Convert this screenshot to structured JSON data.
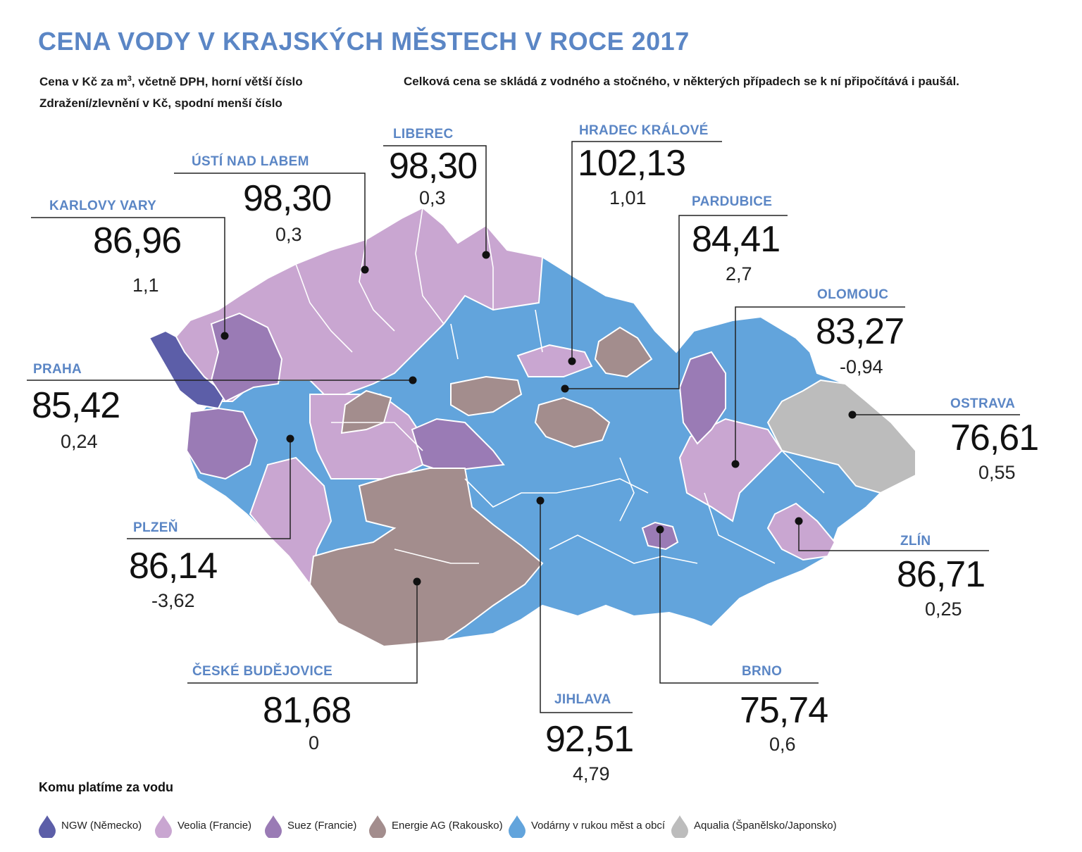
{
  "title": "CENA VODY V KRAJSKÝCH MĚSTECH V ROCE 2017",
  "subtitle": {
    "line1_prefix": "Cena v Kč za m",
    "line1_sup": "3",
    "line1_suffix": ", včetně DPH, horní větší číslo",
    "line2": "Zdražení/zlevnění v Kč, spodní menší číslo",
    "note": "Celková cena se skládá z vodného a stočného, v některých případech se k ní připočítává i paušál."
  },
  "colors": {
    "ngw": "#5c5ea8",
    "veolia": "#c9a6d1",
    "suez": "#9a7bb5",
    "energie": "#a38d8d",
    "vodarny": "#62a4dc",
    "aqualia": "#bcbcbc"
  },
  "cities": [
    {
      "id": "praha",
      "name": "PRAHA",
      "price": "85,42",
      "change": "0,24"
    },
    {
      "id": "karlovy-vary",
      "name": "KARLOVY VARY",
      "price": "86,96",
      "change": "1,1"
    },
    {
      "id": "usti",
      "name": "ÚSTÍ NAD LABEM",
      "price": "98,30",
      "change": "0,3"
    },
    {
      "id": "liberec",
      "name": "LIBEREC",
      "price": "98,30",
      "change": "0,3"
    },
    {
      "id": "hradec",
      "name": "HRADEC KRÁLOVÉ",
      "price": "102,13",
      "change": "1,01"
    },
    {
      "id": "pardubice",
      "name": "PARDUBICE",
      "price": "84,41",
      "change": "2,7"
    },
    {
      "id": "olomouc",
      "name": "OLOMOUC",
      "price": "83,27",
      "change": "-0,94"
    },
    {
      "id": "ostrava",
      "name": "OSTRAVA",
      "price": "76,61",
      "change": "0,55"
    },
    {
      "id": "zlin",
      "name": "ZLÍN",
      "price": "86,71",
      "change": "0,25"
    },
    {
      "id": "brno",
      "name": "BRNO",
      "price": "75,74",
      "change": "0,6"
    },
    {
      "id": "jihlava",
      "name": "JIHLAVA",
      "price": "92,51",
      "change": "4,79"
    },
    {
      "id": "ceske-budejovice",
      "name": "ČESKÉ BUDĚJOVICE",
      "price": "81,68",
      "change": "0"
    },
    {
      "id": "plzen",
      "name": "PLZEŇ",
      "price": "86,14",
      "change": "-3,62"
    }
  ],
  "legend": {
    "title": "Komu platíme za vodu",
    "items": [
      {
        "id": "ngw",
        "label": "NGW (Německo)"
      },
      {
        "id": "veolia",
        "label": "Veolia (Francie)"
      },
      {
        "id": "suez",
        "label": "Suez (Francie)"
      },
      {
        "id": "energie",
        "label": "Energie AG (Rakousko)"
      },
      {
        "id": "vodarny",
        "label": "Vodárny v rukou měst a obcí"
      },
      {
        "id": "aqualia",
        "label": "Aqualia (Španělsko/Japonsko)"
      }
    ]
  }
}
